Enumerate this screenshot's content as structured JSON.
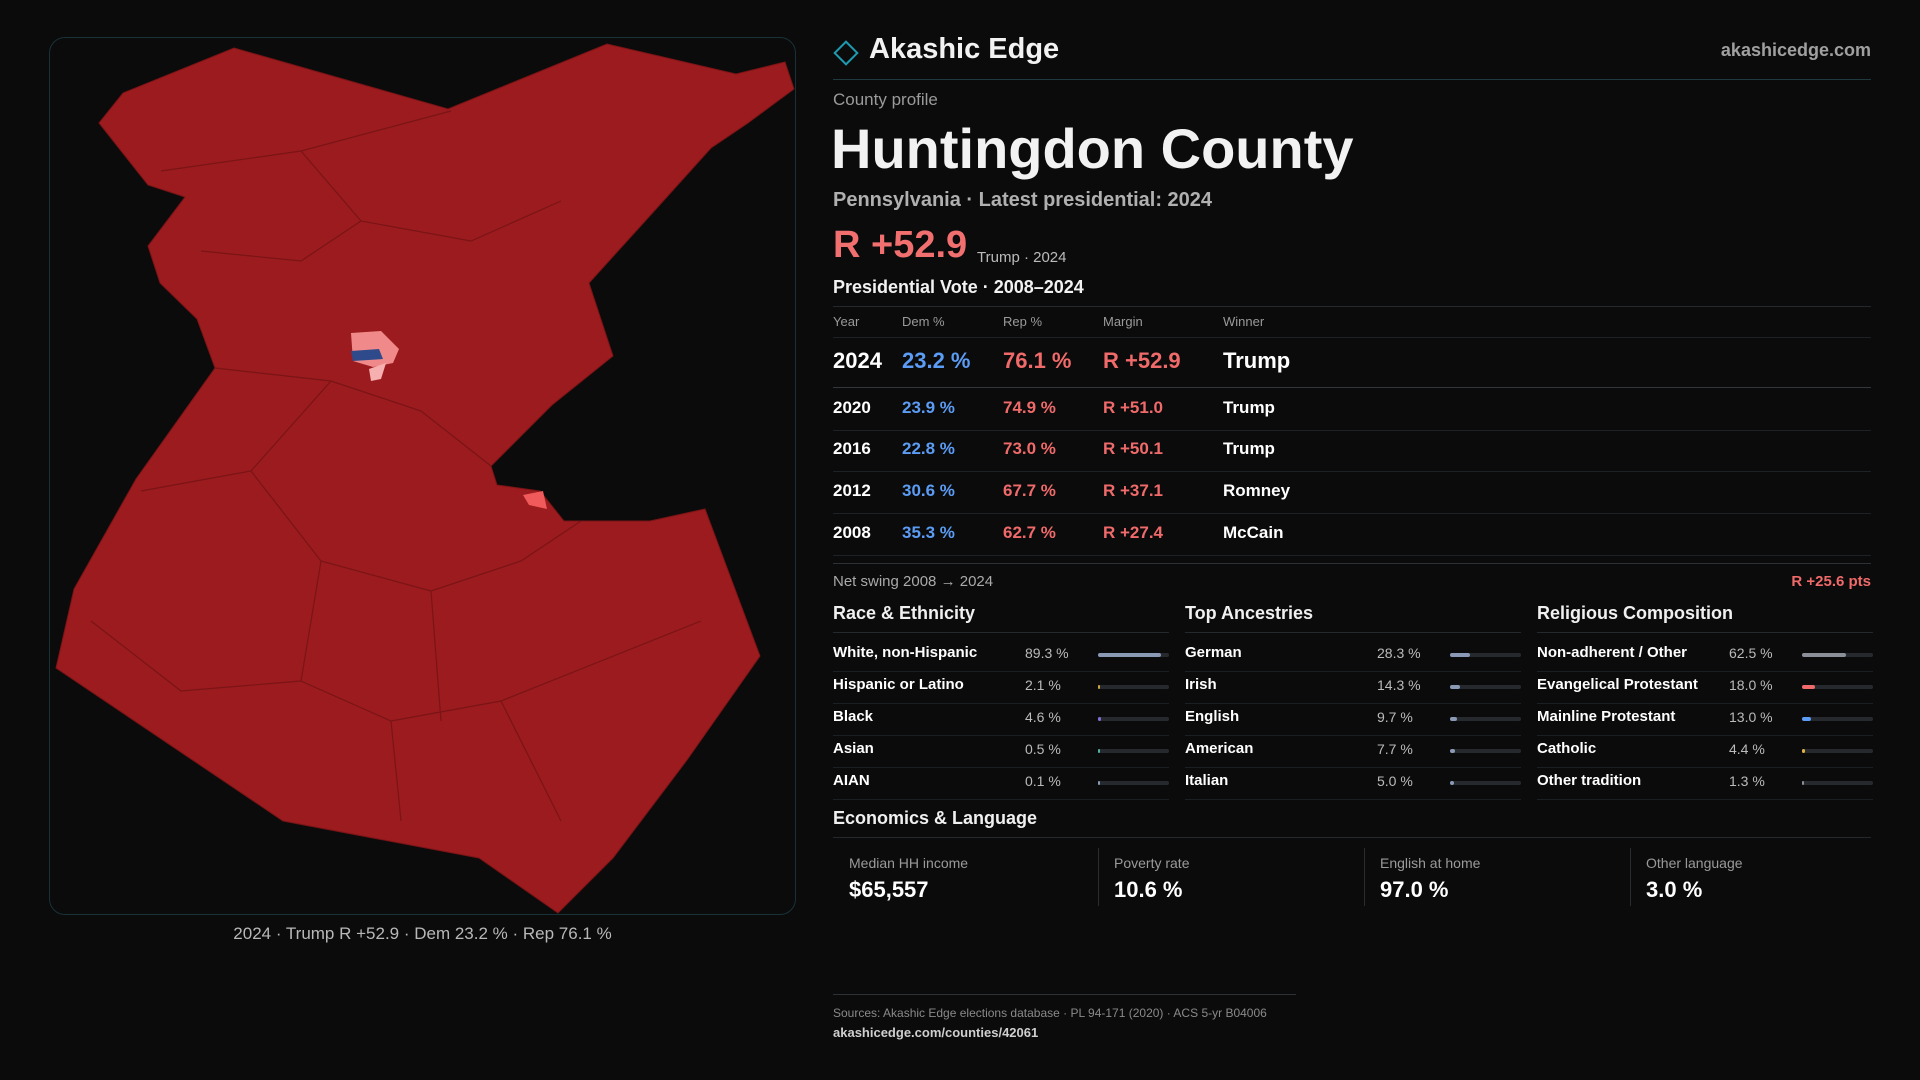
{
  "header": {
    "brand": "Akashic Edge",
    "site": "akashicedge.com"
  },
  "profile": {
    "kicker": "County profile",
    "title": "Huntingdon County",
    "subtitle": "Pennsylvania · Latest presidential: 2024",
    "headline_margin": "R +52.9",
    "headline_note": "Trump · 2024"
  },
  "vote_table": {
    "title": "Presidential Vote · 2008–2024",
    "columns": [
      "Year",
      "Dem %",
      "Rep %",
      "Margin",
      "Winner"
    ],
    "rows": [
      [
        "2024",
        "23.2 %",
        "76.1 %",
        "R +52.9",
        "Trump"
      ],
      [
        "2020",
        "23.9 %",
        "74.9 %",
        "R +51.0",
        "Trump"
      ],
      [
        "2016",
        "22.8 %",
        "73.0 %",
        "R +50.1",
        "Trump"
      ],
      [
        "2012",
        "30.6 %",
        "67.7 %",
        "R +37.1",
        "Romney"
      ],
      [
        "2008",
        "35.3 %",
        "62.7 %",
        "R +27.4",
        "McCain"
      ]
    ]
  },
  "swing": {
    "label": "Net swing 2008 → 2024",
    "value": "R +25.6 pts"
  },
  "demographics": [
    {
      "title": "Race & Ethnicity",
      "rows": [
        {
          "name": "White, non-Hispanic",
          "value": 89.3,
          "label": "89.3 %",
          "color": "#8a9ab4"
        },
        {
          "name": "Hispanic or Latino",
          "value": 2.1,
          "label": "2.1 %",
          "color": "#c9a640"
        },
        {
          "name": "Black",
          "value": 4.6,
          "label": "4.6 %",
          "color": "#7f6fd6"
        },
        {
          "name": "Asian",
          "value": 0.5,
          "label": "0.5 %",
          "color": "#4fb3a3"
        },
        {
          "name": "AIAN",
          "value": 0.1,
          "label": "0.1 %",
          "color": "#8a9ab4"
        }
      ]
    },
    {
      "title": "Top Ancestries",
      "rows": [
        {
          "name": "German",
          "value": 28.3,
          "label": "28.3 %",
          "color": "#8a9ab4"
        },
        {
          "name": "Irish",
          "value": 14.3,
          "label": "14.3 %",
          "color": "#8a9ab4"
        },
        {
          "name": "English",
          "value": 9.7,
          "label": "9.7 %",
          "color": "#8a9ab4"
        },
        {
          "name": "American",
          "value": 7.7,
          "label": "7.7 %",
          "color": "#8a9ab4"
        },
        {
          "name": "Italian",
          "value": 5.0,
          "label": "5.0 %",
          "color": "#8a9ab4"
        }
      ]
    },
    {
      "title": "Religious Composition",
      "rows": [
        {
          "name": "Non-adherent / Other",
          "value": 62.5,
          "label": "62.5 %",
          "color": "#8a8f98"
        },
        {
          "name": "Evangelical Protestant",
          "value": 18.0,
          "label": "18.0 %",
          "color": "#f06a6a"
        },
        {
          "name": "Mainline Protestant",
          "value": 13.0,
          "label": "13.0 %",
          "color": "#5b9cf5"
        },
        {
          "name": "Catholic",
          "value": 4.4,
          "label": "4.4 %",
          "color": "#e0b040"
        },
        {
          "name": "Other tradition",
          "value": 1.3,
          "label": "1.3 %",
          "color": "#8a8f98"
        }
      ]
    }
  ],
  "economics": {
    "title": "Economics & Language",
    "cards": [
      {
        "label": "Median HH income",
        "value": "$65,557"
      },
      {
        "label": "Poverty rate",
        "value": "10.6 %"
      },
      {
        "label": "English at home",
        "value": "97.0 %"
      },
      {
        "label": "Other language",
        "value": "3.0 %"
      }
    ]
  },
  "sources": {
    "text": "Sources: Akashic Edge elections database · PL 94-171 (2020) · ACS 5-yr B04006",
    "url": "akashicedge.com/counties/42061"
  },
  "map": {
    "caption": "2024 · Trump R +52.9 · Dem 23.2 % · Rep 76.1 %"
  }
}
